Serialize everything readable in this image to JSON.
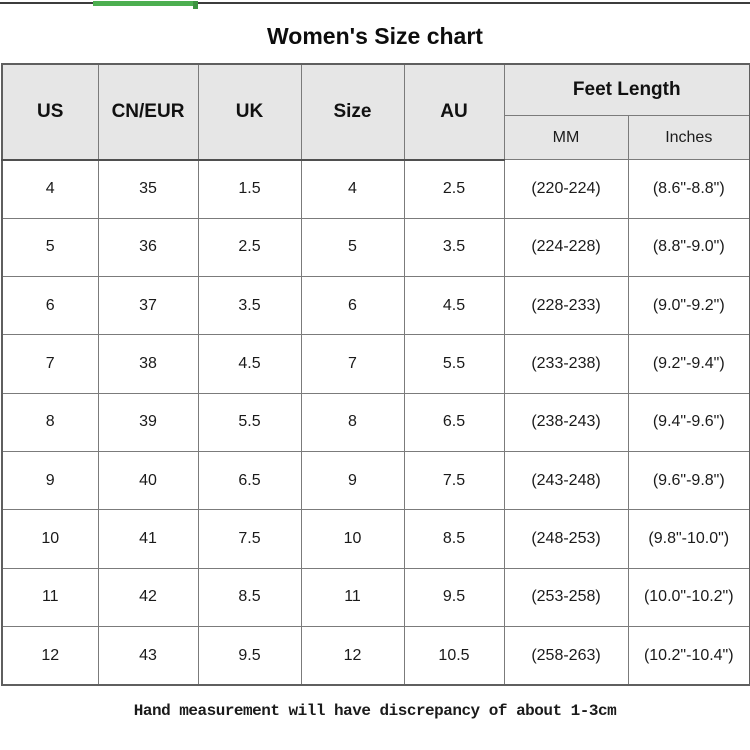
{
  "page": {
    "title": "Women's Size chart",
    "footnote": "Hand measurement will have discrepancy of about 1-3cm"
  },
  "colors": {
    "accent_green": "#4caf50",
    "accent_green_dark": "#3d9441",
    "top_line": "#3c3c3c",
    "header_bg": "#e6e6e6",
    "grid_line": "#7b7b7b"
  },
  "table": {
    "headers": [
      "US",
      "CN/EUR",
      "UK",
      "Size",
      "AU"
    ],
    "group_header": "Feet Length",
    "sub_headers": [
      "MM",
      "Inches"
    ],
    "rows": [
      [
        "4",
        "35",
        "1.5",
        "4",
        "2.5",
        "(220-224)",
        "(8.6\"-8.8\")"
      ],
      [
        "5",
        "36",
        "2.5",
        "5",
        "3.5",
        "(224-228)",
        "(8.8\"-9.0\")"
      ],
      [
        "6",
        "37",
        "3.5",
        "6",
        "4.5",
        "(228-233)",
        "(9.0\"-9.2\")"
      ],
      [
        "7",
        "38",
        "4.5",
        "7",
        "5.5",
        "(233-238)",
        "(9.2\"-9.4\")"
      ],
      [
        "8",
        "39",
        "5.5",
        "8",
        "6.5",
        "(238-243)",
        "(9.4\"-9.6\")"
      ],
      [
        "9",
        "40",
        "6.5",
        "9",
        "7.5",
        "(243-248)",
        "(9.6\"-9.8\")"
      ],
      [
        "10",
        "41",
        "7.5",
        "10",
        "8.5",
        "(248-253)",
        "(9.8\"-10.0\")"
      ],
      [
        "11",
        "42",
        "8.5",
        "11",
        "9.5",
        "(253-258)",
        "(10.0\"-10.2\")"
      ],
      [
        "12",
        "43",
        "9.5",
        "12",
        "10.5",
        "(258-263)",
        "(10.2\"-10.4\")"
      ]
    ]
  }
}
